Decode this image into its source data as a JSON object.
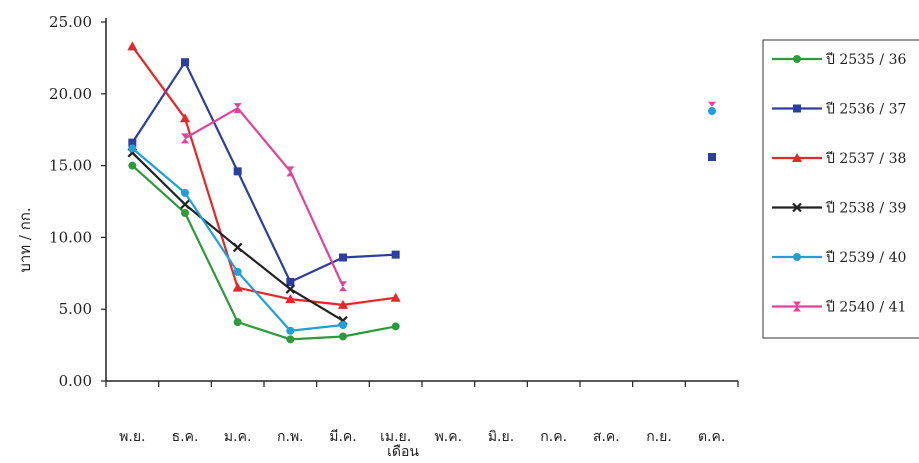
{
  "chart_data": {
    "type": "line",
    "xlabel": "เดือน",
    "ylabel": "บาท / กก.",
    "ylim": [
      0,
      25
    ],
    "yticks": [
      "0.00",
      "5.00",
      "10.00",
      "15.00",
      "20.00",
      "25.00"
    ],
    "categories": [
      "พ.ย.",
      "ธ.ค.",
      "ม.ค.",
      "ก.พ.",
      "มี.ค.",
      "เม.ย.",
      "พ.ค.",
      "มิ.ย.",
      "ก.ค.",
      "ส.ค.",
      "ก.ย.",
      "ต.ค."
    ],
    "grid": false,
    "legend_position": "right",
    "series": [
      {
        "name": "ปี 2535 / 36",
        "color": "#2e9b3a",
        "marker": "circle",
        "values": [
          15.0,
          11.7,
          4.1,
          2.9,
          3.1,
          3.8,
          null,
          null,
          null,
          null,
          null,
          null
        ]
      },
      {
        "name": "ปี 2536 / 37",
        "color": "#2c3e9e",
        "marker": "square",
        "values": [
          16.6,
          22.2,
          14.6,
          6.9,
          8.6,
          8.8,
          null,
          null,
          null,
          null,
          null,
          null
        ]
      },
      {
        "name": "ปี 2537 / 38",
        "color": "#e8262a",
        "marker": "triangle",
        "values": [
          23.3,
          18.3,
          6.5,
          5.7,
          5.3,
          5.8,
          null,
          null,
          null,
          null,
          null,
          null
        ]
      },
      {
        "name": "ปี 2538 / 39",
        "color": "#222222",
        "marker": "x",
        "values": [
          15.9,
          12.3,
          9.3,
          6.4,
          4.2,
          null,
          null,
          null,
          null,
          null,
          null,
          null
        ]
      },
      {
        "name": "ปี 2539 / 40",
        "color": "#1ea0d8",
        "marker": "circle",
        "values": [
          16.2,
          13.1,
          7.6,
          3.5,
          3.9,
          null,
          null,
          null,
          null,
          null,
          null,
          null
        ]
      },
      {
        "name": "ปี 2540 / 41",
        "color": "#e2429a",
        "marker": "hourglass",
        "values": [
          null,
          16.9,
          19.0,
          14.6,
          6.6,
          null,
          null,
          null,
          null,
          null,
          null,
          null
        ]
      }
    ],
    "extra_points": [
      {
        "category": "ต.ค.",
        "value": 19.1,
        "color": "#e2429a",
        "marker": "hourglass"
      },
      {
        "category": "ต.ค.",
        "value": 18.8,
        "color": "#1ea0d8",
        "marker": "circle"
      },
      {
        "category": "ต.ค.",
        "value": 15.6,
        "color": "#2c3e9e",
        "marker": "square"
      }
    ]
  }
}
